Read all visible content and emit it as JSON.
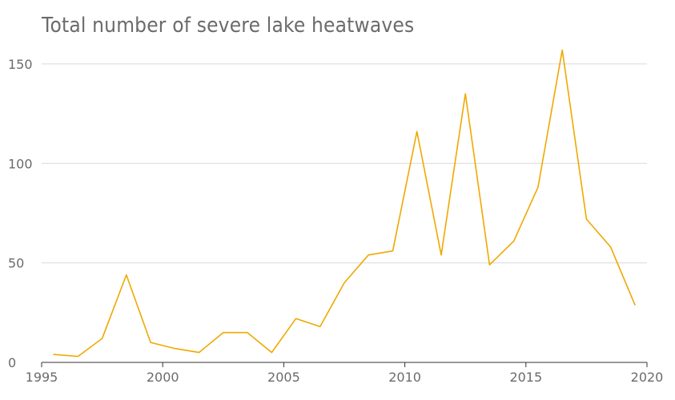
{
  "chart_data": {
    "type": "line",
    "title": "Total number of severe lake heatwaves",
    "xlabel": "",
    "ylabel": "",
    "xlim": [
      1995,
      2020
    ],
    "ylim": [
      0,
      160
    ],
    "x_ticks": [
      1995,
      2000,
      2005,
      2010,
      2015,
      2020
    ],
    "y_ticks": [
      0,
      50,
      100,
      150
    ],
    "grid": "horizontal",
    "colors": {
      "line": "#f0a800",
      "grid": "#d9d9d9",
      "axis": "#333333",
      "text": "#6b6b6b"
    },
    "series": [
      {
        "x": [
          1995.5,
          1996.5,
          1997.5,
          1998.5,
          1999.5,
          2000.5,
          2001.5,
          2002.5,
          2003.5,
          2004.5,
          2005.5,
          2006.5,
          2007.5,
          2008.5,
          2009.5,
          2010.5,
          2011.5,
          2012.5,
          2013.5,
          2014.5,
          2015.5,
          2016.5,
          2017.5,
          2018.5,
          2019.5
        ],
        "values": [
          4,
          3,
          12,
          44,
          10,
          7,
          5,
          15,
          15,
          5,
          22,
          18,
          40,
          54,
          56,
          116,
          54,
          135,
          49,
          61,
          88,
          157,
          72,
          58,
          29
        ]
      }
    ]
  }
}
